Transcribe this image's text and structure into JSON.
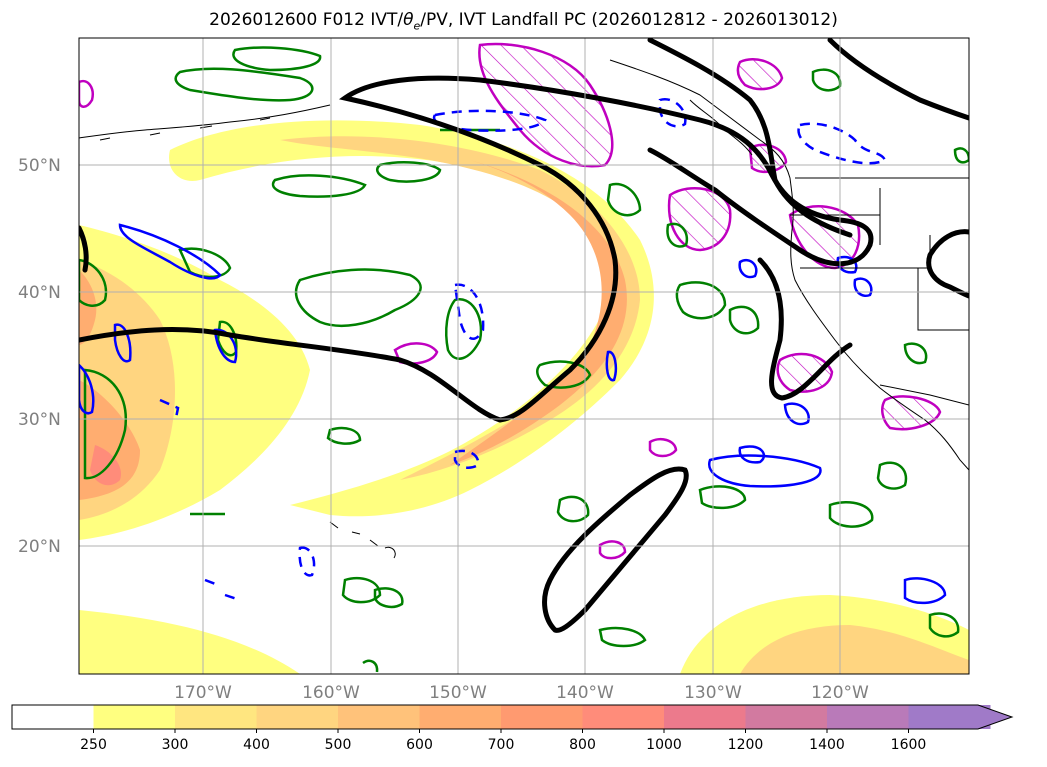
{
  "title": {
    "main": "2026012600 F012 IVT/",
    "theta": "θ",
    "theta_sub": "e",
    "rest": "/PV, IVT Landfall PC (2026012812 - 2026013012)"
  },
  "map": {
    "lat_labels": [
      "50°N",
      "40°N",
      "30°N",
      "20°N"
    ],
    "lon_labels": [
      "170°W",
      "160°W",
      "150°W",
      "140°W",
      "130°W",
      "120°W"
    ]
  },
  "colorbar": {
    "ticks": [
      "250",
      "300",
      "400",
      "500",
      "600",
      "700",
      "800",
      "1000",
      "1200",
      "1400",
      "1600"
    ],
    "colors": [
      "#ffffff",
      "#ffff80",
      "#ffe680",
      "#ffd580",
      "#ffc27a",
      "#ffad70",
      "#ff9a70",
      "#ff8c7a",
      "#ec7a8c",
      "#d27aa0",
      "#b97ab9",
      "#a07ac8"
    ],
    "extend": "max"
  },
  "colors": {
    "ivt_light": "#ffff80",
    "ivt_mid": "#ffd580",
    "ivt_high": "#ffad70",
    "ivt_peak": "#ff8c7a",
    "pv_line": "#008000",
    "theta_line": "#0000ff",
    "landfall_line": "#c000c0",
    "streamline": "#000000",
    "grid": "#b0b0b0"
  }
}
